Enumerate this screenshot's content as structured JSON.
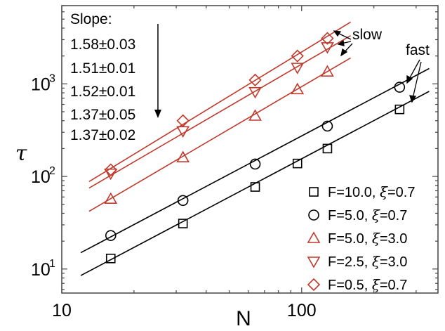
{
  "chart_data": {
    "type": "scatter",
    "xlabel": "N",
    "ylabel": "τ",
    "xscale": "log",
    "yscale": "log",
    "xlim": [
      10,
      370
    ],
    "ylim": [
      5.5,
      7000
    ],
    "x_ticks": [
      {
        "value": 10,
        "label": "10"
      },
      {
        "value": 100,
        "label": "100"
      }
    ],
    "y_ticks": [
      {
        "value": 10,
        "base": "10",
        "exp": "1"
      },
      {
        "value": 100,
        "base": "10",
        "exp": "2"
      },
      {
        "value": 1000,
        "base": "10",
        "exp": "3"
      }
    ],
    "legend_position": "bottom-right",
    "series": [
      {
        "name": "F=10.0, ξ=0.7",
        "name_parts": [
          "F=10.0, ",
          "ξ",
          "=0.7"
        ],
        "marker": "square",
        "color": "#000000",
        "x": [
          16,
          32,
          64,
          96,
          128,
          256
        ],
        "y": [
          13,
          31,
          77,
          138,
          200,
          530
        ],
        "fit": {
          "x": [
            12,
            340
          ],
          "slope": 1.37,
          "slope_err": 0.02,
          "y0": 8.5
        }
      },
      {
        "name": "F=5.0, ξ=0.7",
        "name_parts": [
          "F=5.0, ",
          "ξ",
          "=0.7"
        ],
        "marker": "circle",
        "color": "#000000",
        "x": [
          16,
          32,
          64,
          128,
          256
        ],
        "y": [
          23,
          55,
          136,
          350,
          920
        ],
        "fit": {
          "x": [
            12,
            340
          ],
          "slope": 1.37,
          "slope_err": 0.05,
          "y0": 15
        }
      },
      {
        "name": "F=5.0, ξ=3.0",
        "name_parts": [
          "F=5.0, ",
          "ξ",
          "=3.0"
        ],
        "marker": "triangle-up",
        "color": "#c0392b",
        "x": [
          16,
          32,
          64,
          96,
          128
        ],
        "y": [
          57,
          160,
          450,
          870,
          1350
        ],
        "fit": {
          "x": [
            13,
            160
          ],
          "slope": 1.52,
          "slope_err": 0.01,
          "y0": 42
        }
      },
      {
        "name": "F=2.5, ξ=3.0",
        "name_parts": [
          "F=2.5, ",
          "ξ",
          "=3.0"
        ],
        "marker": "triangle-down",
        "color": "#c0392b",
        "x": [
          16,
          32,
          64,
          96,
          128
        ],
        "y": [
          108,
          310,
          820,
          1500,
          2500
        ],
        "fit": {
          "x": [
            13,
            160
          ],
          "slope": 1.51,
          "slope_err": 0.01,
          "y0": 75
        }
      },
      {
        "name": "F=0.5, ξ=0.7",
        "name_parts": [
          "F=0.5, ",
          "ξ",
          "=0.7"
        ],
        "marker": "diamond",
        "color": "#c0392b",
        "x": [
          16,
          32,
          64,
          96,
          128
        ],
        "y": [
          118,
          400,
          1100,
          2000,
          3100
        ],
        "fit": {
          "x": [
            13,
            160
          ],
          "slope": 1.58,
          "slope_err": 0.03,
          "y0": 88
        }
      }
    ],
    "annotations": {
      "slope_title": "Slope:",
      "slopes": [
        "1.58±0.03",
        "1.51±0.01",
        "1.52±0.01",
        "1.37±0.05",
        "1.37±0.02"
      ],
      "slow_label": "slow",
      "fast_label": "fast"
    }
  }
}
